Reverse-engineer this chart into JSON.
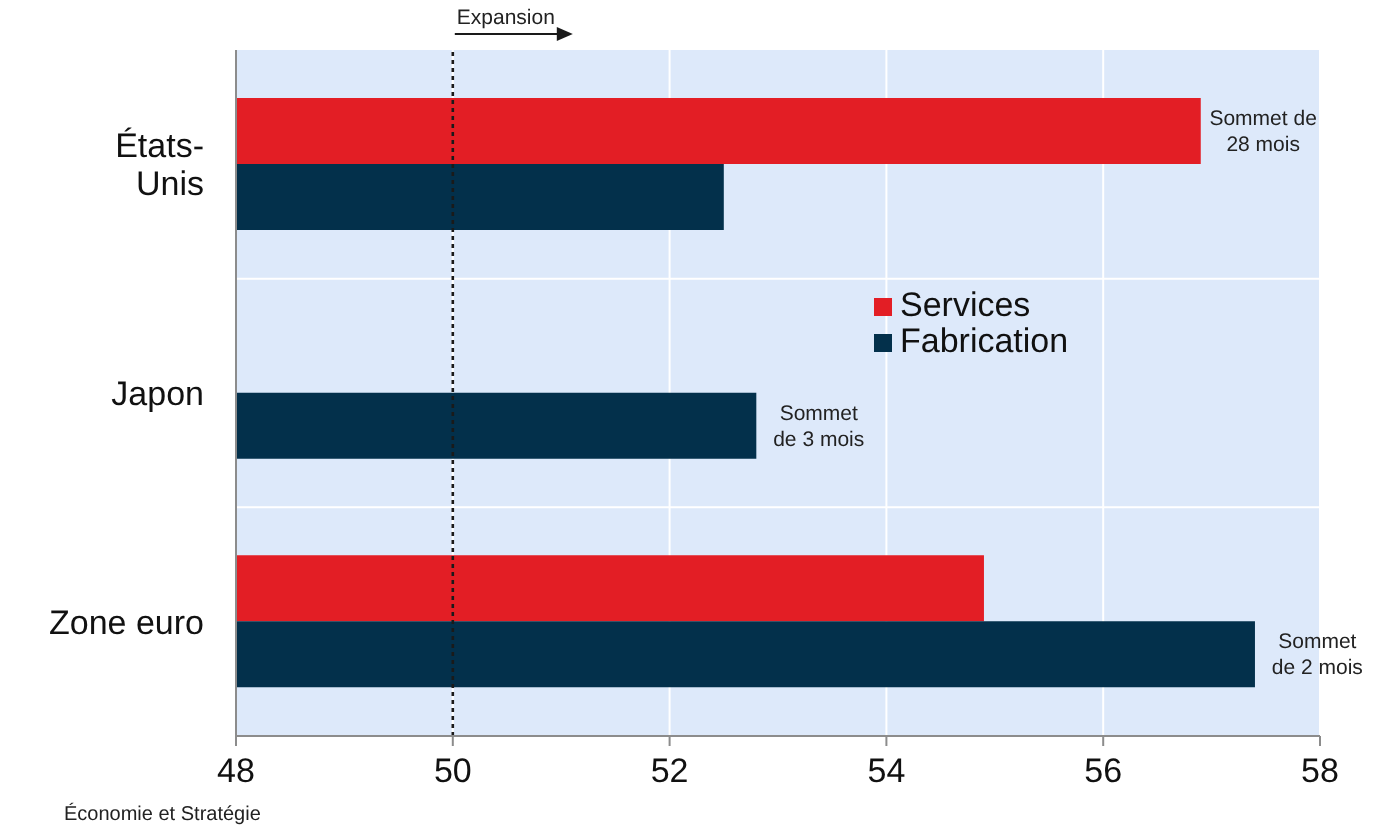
{
  "chart_data": {
    "type": "bar",
    "orientation": "horizontal",
    "categories": [
      "États-Unis",
      "Japon",
      "Zone euro"
    ],
    "series": [
      {
        "name": "Services",
        "color": "#e31e25",
        "values": [
          56.9,
          null,
          54.9
        ]
      },
      {
        "name": "Fabrication",
        "color": "#03304b",
        "values": [
          52.5,
          52.8,
          57.4
        ]
      }
    ],
    "xlim": [
      48,
      58
    ],
    "xticks": [
      48,
      50,
      52,
      54,
      56,
      58
    ],
    "grid": true,
    "legend": "right",
    "ref_lines": [
      {
        "axis": "x",
        "value": 50,
        "label": "Expansion",
        "color": "#1a1a1a",
        "line_style": "dotted"
      }
    ],
    "annotations": [
      {
        "text": "Sommet de\n28 mois",
        "x": 56.9,
        "y": "États-Unis"
      },
      {
        "text": "Sommet\nde 3 mois",
        "x": 52.8,
        "y": "Japon"
      },
      {
        "text": "Sommet\nde 2 mois",
        "x": 57.4,
        "y": "Zone euro"
      },
      "Économie et Stratégie"
    ]
  }
}
